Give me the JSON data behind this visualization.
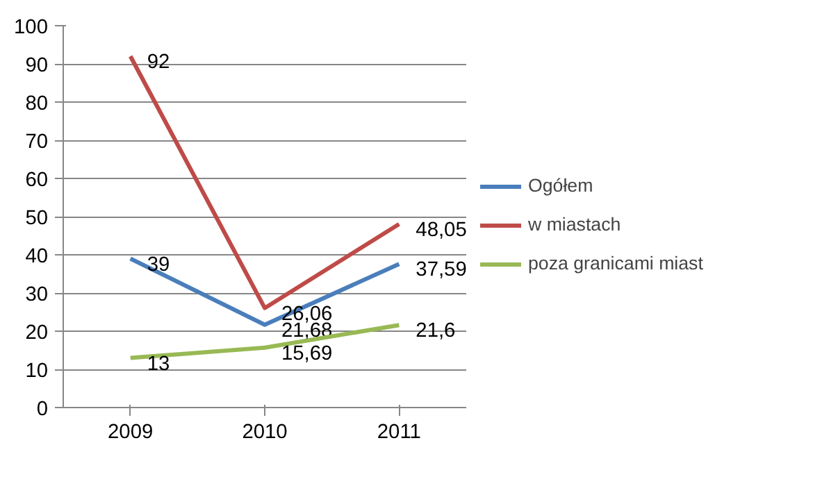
{
  "chart_data": {
    "type": "line",
    "categories": [
      "2009",
      "2010",
      "2011"
    ],
    "series": [
      {
        "name": "Ogółem",
        "color": "#4a7ebb",
        "values": [
          39,
          21.68,
          37.59
        ],
        "value_labels": [
          "39",
          "21,68",
          "37,59"
        ]
      },
      {
        "name": "w miastach",
        "color": "#be4b48",
        "values": [
          92,
          26.06,
          48.05
        ],
        "value_labels": [
          "92",
          "26,06",
          "48,05"
        ]
      },
      {
        "name": "poza granicami miast",
        "color": "#98b954",
        "values": [
          13,
          15.69,
          21.6
        ],
        "value_labels": [
          "13",
          "15,69",
          "21,6"
        ]
      }
    ],
    "ylim": [
      0,
      100
    ],
    "yticks": [
      0,
      10,
      20,
      30,
      40,
      50,
      60,
      70,
      80,
      90,
      100
    ],
    "grid": "y",
    "legend": "right",
    "marker": "none",
    "line_style": "solid"
  }
}
